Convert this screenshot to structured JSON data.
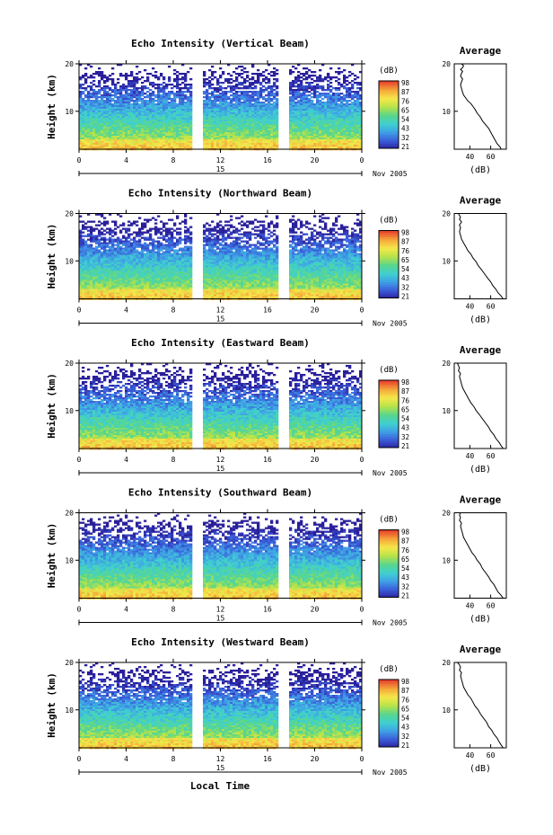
{
  "colors": {
    "colorbar_stops": [
      "#2a1f9a",
      "#3a5bd8",
      "#3f9fe6",
      "#3fd0d0",
      "#59d68c",
      "#b5e34a",
      "#f5e84a",
      "#f5a93a",
      "#e8452e"
    ]
  },
  "figure": {
    "xlabel": "Local Time"
  },
  "chart_data": [
    {
      "type": "heatmap",
      "title": "Echo Intensity (Vertical Beam)",
      "ylabel": "Height (km)",
      "ylim": [
        2,
        20
      ],
      "yticks": [
        "20",
        "10"
      ],
      "xlim": [
        0,
        24
      ],
      "xticks": [
        "0",
        "4",
        "8",
        "12",
        "16",
        "20",
        "0"
      ],
      "date_label": "15",
      "month_label": "Nov 2005",
      "data_gaps_hours": [
        [
          9.6,
          10.4
        ],
        [
          16.8,
          17.6
        ]
      ],
      "colorbar": {
        "label": "(dB)",
        "ticks": [
          "98",
          "87",
          "76",
          "65",
          "54",
          "43",
          "32",
          "21"
        ]
      },
      "inset": {
        "type": "line",
        "title": "Average",
        "xlabel": "(dB)",
        "xticks": [
          "40",
          "60"
        ],
        "yticks": [
          "20",
          "10"
        ],
        "xlim": [
          25,
          75
        ],
        "ylim": [
          2,
          20
        ],
        "x": [
          70,
          69,
          66,
          64,
          62,
          60,
          58,
          55,
          52,
          50,
          47,
          45,
          43,
          41,
          38,
          36,
          34,
          33,
          32,
          31,
          32,
          33,
          31,
          32,
          33,
          31,
          33,
          34,
          32
        ],
        "y": [
          2.0,
          2.5,
          3.2,
          4.0,
          4.8,
          5.6,
          6.4,
          7.2,
          8.0,
          8.8,
          9.6,
          10.4,
          11.0,
          11.6,
          12.2,
          12.8,
          13.4,
          14.0,
          14.8,
          15.6,
          16.2,
          16.8,
          17.4,
          18.0,
          18.4,
          18.8,
          19.2,
          19.6,
          20.0
        ]
      }
    },
    {
      "type": "heatmap",
      "title": "Echo Intensity (Northward Beam)",
      "ylabel": "Height (km)",
      "ylim": [
        2,
        20
      ],
      "yticks": [
        "20",
        "10"
      ],
      "xlim": [
        0,
        24
      ],
      "xticks": [
        "0",
        "4",
        "8",
        "12",
        "16",
        "20",
        "0"
      ],
      "date_label": "15",
      "month_label": "Nov 2005",
      "data_gaps_hours": [
        [
          9.6,
          10.4
        ],
        [
          16.8,
          17.6
        ]
      ],
      "colorbar": {
        "label": "(dB)",
        "ticks": [
          "98",
          "87",
          "76",
          "65",
          "54",
          "43",
          "32",
          "21"
        ]
      },
      "inset": {
        "type": "line",
        "title": "Average",
        "xlabel": "(dB)",
        "xticks": [
          "40",
          "60"
        ],
        "yticks": [
          "20",
          "10"
        ],
        "xlim": [
          25,
          75
        ],
        "ylim": [
          2,
          20
        ],
        "x": [
          72,
          70,
          67,
          65,
          62,
          60,
          57,
          54,
          51,
          48,
          46,
          43,
          41,
          38,
          36,
          34,
          32,
          31,
          30,
          31,
          30,
          32,
          30,
          31,
          30,
          29
        ],
        "y": [
          2.0,
          2.6,
          3.3,
          4.0,
          4.8,
          5.6,
          6.4,
          7.3,
          8.2,
          9.0,
          9.8,
          10.6,
          11.4,
          12.2,
          13.0,
          13.8,
          14.6,
          15.4,
          16.2,
          17.0,
          17.6,
          18.2,
          18.8,
          19.2,
          19.6,
          20.0
        ]
      }
    },
    {
      "type": "heatmap",
      "title": "Echo Intensity (Eastward Beam)",
      "ylabel": "Height (km)",
      "ylim": [
        2,
        20
      ],
      "yticks": [
        "20",
        "10"
      ],
      "xlim": [
        0,
        24
      ],
      "xticks": [
        "0",
        "4",
        "8",
        "12",
        "16",
        "20",
        "0"
      ],
      "date_label": "15",
      "month_label": "Nov 2005",
      "data_gaps_hours": [
        [
          9.6,
          10.4
        ],
        [
          16.8,
          17.6
        ]
      ],
      "colorbar": {
        "label": "(dB)",
        "ticks": [
          "98",
          "87",
          "76",
          "65",
          "54",
          "43",
          "32",
          "21"
        ]
      },
      "inset": {
        "type": "line",
        "title": "Average",
        "xlabel": "(dB)",
        "xticks": [
          "40",
          "60"
        ],
        "yticks": [
          "20",
          "10"
        ],
        "xlim": [
          25,
          75
        ],
        "ylim": [
          2,
          20
        ],
        "x": [
          72,
          70,
          68,
          65,
          63,
          60,
          58,
          55,
          52,
          49,
          46,
          44,
          41,
          39,
          37,
          35,
          33,
          32,
          31,
          30,
          31,
          29,
          30,
          29,
          28
        ],
        "y": [
          2.0,
          2.6,
          3.3,
          4.1,
          4.9,
          5.7,
          6.5,
          7.4,
          8.3,
          9.2,
          10.0,
          10.8,
          11.6,
          12.4,
          13.2,
          14.0,
          14.8,
          15.6,
          16.4,
          17.2,
          17.8,
          18.4,
          19.0,
          19.5,
          20.0
        ]
      }
    },
    {
      "type": "heatmap",
      "title": "Echo Intensity (Southward Beam)",
      "ylabel": "Height (km)",
      "ylim": [
        2,
        20
      ],
      "yticks": [
        "20",
        "10"
      ],
      "xlim": [
        0,
        24
      ],
      "xticks": [
        "0",
        "4",
        "8",
        "12",
        "16",
        "20",
        "0"
      ],
      "date_label": "15",
      "month_label": "Nov 2005",
      "data_gaps_hours": [
        [
          9.6,
          10.4
        ],
        [
          16.8,
          17.6
        ]
      ],
      "colorbar": {
        "label": "(dB)",
        "ticks": [
          "98",
          "87",
          "76",
          "65",
          "54",
          "43",
          "32",
          "21"
        ]
      },
      "inset": {
        "type": "line",
        "title": "Average",
        "xlabel": "(dB)",
        "xticks": [
          "40",
          "60"
        ],
        "yticks": [
          "20",
          "10"
        ],
        "xlim": [
          25,
          75
        ],
        "ylim": [
          2,
          20
        ],
        "x": [
          72,
          70,
          67,
          65,
          63,
          60,
          58,
          55,
          52,
          50,
          47,
          45,
          42,
          40,
          38,
          36,
          34,
          33,
          32,
          31,
          32,
          30,
          31,
          30,
          31
        ],
        "y": [
          2.0,
          2.6,
          3.3,
          4.1,
          4.9,
          5.7,
          6.5,
          7.4,
          8.3,
          9.2,
          10.0,
          10.8,
          11.6,
          12.4,
          13.2,
          14.0,
          14.8,
          15.6,
          16.4,
          17.2,
          17.8,
          18.4,
          19.0,
          19.5,
          20.0
        ]
      }
    },
    {
      "type": "heatmap",
      "title": "Echo Intensity (Westward Beam)",
      "ylabel": "Height (km)",
      "ylim": [
        2,
        20
      ],
      "yticks": [
        "20",
        "10"
      ],
      "xlim": [
        0,
        24
      ],
      "xticks": [
        "0",
        "4",
        "8",
        "12",
        "16",
        "20",
        "0"
      ],
      "date_label": "15",
      "month_label": "Nov 2005",
      "data_gaps_hours": [
        [
          9.6,
          10.4
        ],
        [
          16.8,
          17.6
        ]
      ],
      "colorbar": {
        "label": "(dB)",
        "ticks": [
          "98",
          "87",
          "76",
          "65",
          "54",
          "43",
          "32",
          "21"
        ]
      },
      "inset": {
        "type": "line",
        "title": "Average",
        "xlabel": "(dB)",
        "xticks": [
          "40",
          "60"
        ],
        "yticks": [
          "20",
          "10"
        ],
        "xlim": [
          25,
          75
        ],
        "ylim": [
          2,
          20
        ],
        "x": [
          72,
          70,
          68,
          66,
          63,
          61,
          58,
          56,
          53,
          50,
          48,
          45,
          43,
          41,
          38,
          36,
          34,
          33,
          32,
          31,
          32,
          30,
          31,
          30,
          28
        ],
        "y": [
          2.0,
          2.6,
          3.3,
          4.1,
          4.9,
          5.7,
          6.5,
          7.4,
          8.3,
          9.2,
          10.0,
          10.8,
          11.6,
          12.4,
          13.2,
          14.0,
          14.8,
          15.6,
          16.4,
          17.2,
          17.8,
          18.4,
          19.0,
          19.5,
          20.0
        ]
      }
    }
  ]
}
